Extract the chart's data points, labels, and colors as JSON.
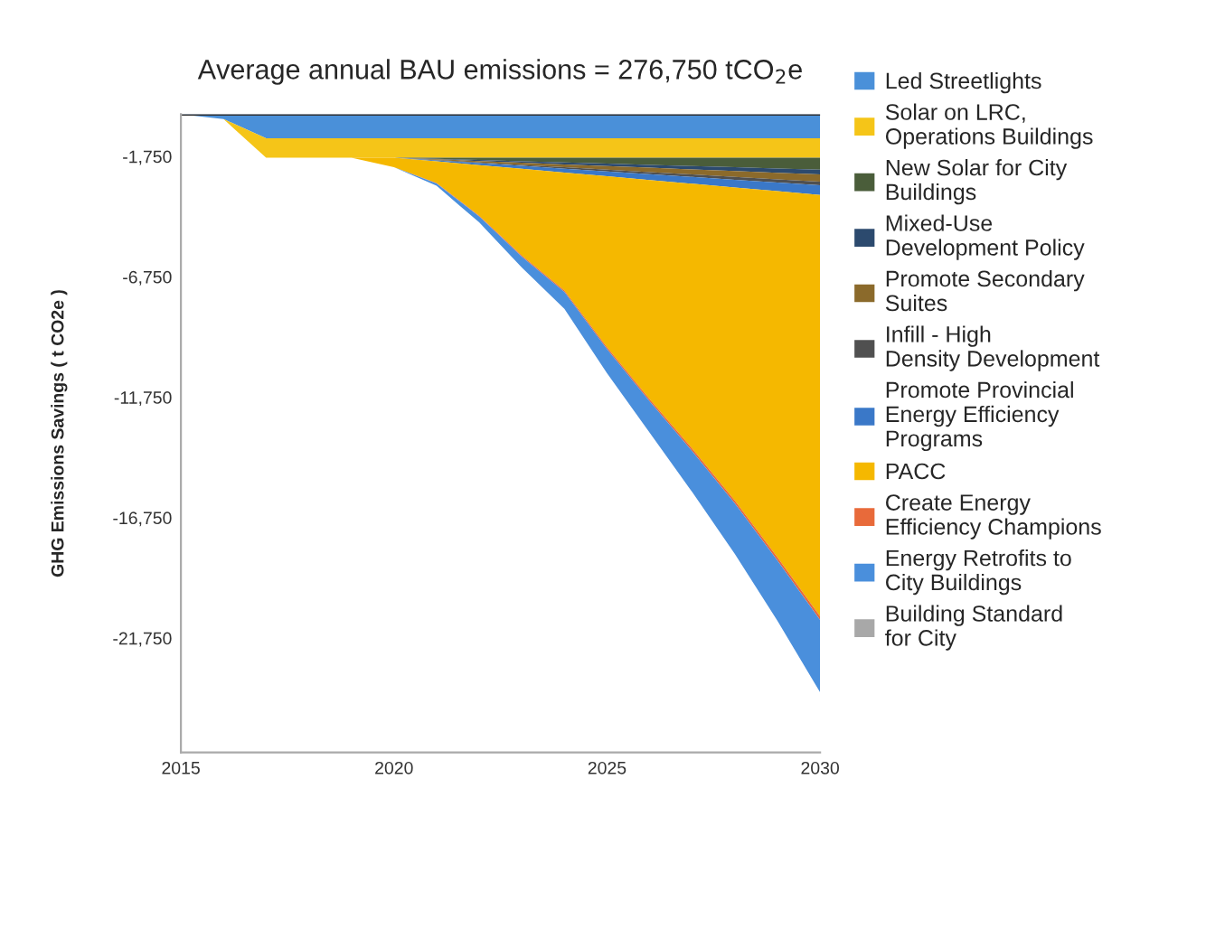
{
  "chart_data": {
    "type": "area",
    "stacked": true,
    "title": "Average annual BAU emissions = 276,750 tCO$_{2}$e",
    "ylabel": "GHG Emissions Savings ( t CO2e )",
    "x": [
      2015,
      2016,
      2017,
      2018,
      2019,
      2020,
      2021,
      2022,
      2023,
      2024,
      2025,
      2026,
      2027,
      2028,
      2029,
      2030
    ],
    "xlim": [
      2015,
      2030
    ],
    "xticks": [
      2015,
      2020,
      2025,
      2030
    ],
    "ylim": [
      -26500,
      0
    ],
    "yticks": [
      {
        "value": -1750,
        "label": "-1,750"
      },
      {
        "value": -6750,
        "label": "-6,750"
      },
      {
        "value": -11750,
        "label": "-11,750"
      },
      {
        "value": -16750,
        "label": "-16,750"
      },
      {
        "value": -21750,
        "label": "-21,750"
      }
    ],
    "grid": false,
    "legend": "right",
    "series": [
      {
        "name": "Led Streetlights",
        "color": "#4a90d9",
        "values": [
          0,
          -200,
          -1000,
          -1000,
          -1000,
          -1000,
          -1000,
          -1000,
          -1000,
          -1000,
          -1000,
          -1000,
          -1000,
          -1000,
          -1000,
          -1000
        ]
      },
      {
        "name": "Solar on LRC, Operations Buildings",
        "color": "#f5c518",
        "values": [
          0,
          0,
          -800,
          -800,
          -800,
          -800,
          -800,
          -800,
          -800,
          -800,
          -800,
          -800,
          -800,
          -800,
          -800,
          -800
        ]
      },
      {
        "name": "New Solar for City Buildings",
        "color": "#4a5d3a",
        "values": [
          0,
          0,
          0,
          0,
          0,
          0,
          -50,
          -100,
          -150,
          -200,
          -250,
          -300,
          -350,
          -400,
          -450,
          -500
        ]
      },
      {
        "name": "Mixed-Use Development Policy",
        "color": "#2c4a6e",
        "values": [
          0,
          0,
          0,
          0,
          0,
          0,
          -20,
          -40,
          -60,
          -80,
          -100,
          -120,
          -140,
          -160,
          -180,
          -200
        ]
      },
      {
        "name": "Promote Secondary Suites",
        "color": "#8b6a2b",
        "values": [
          0,
          0,
          0,
          0,
          0,
          0,
          -30,
          -60,
          -90,
          -120,
          -150,
          -180,
          -210,
          -240,
          -270,
          -300
        ]
      },
      {
        "name": "Infill - High Density Development",
        "color": "#505050",
        "values": [
          0,
          0,
          0,
          0,
          0,
          0,
          -15,
          -30,
          -45,
          -60,
          -75,
          -90,
          -105,
          -120,
          -135,
          -150
        ]
      },
      {
        "name": "Promote Provincial Energy Efficiency Programs",
        "color": "#3a78c8",
        "values": [
          0,
          0,
          0,
          0,
          0,
          0,
          -40,
          -80,
          -120,
          -160,
          -200,
          -240,
          -280,
          -320,
          -360,
          -400
        ]
      },
      {
        "name": "PACC",
        "color": "#f5b800",
        "values": [
          0,
          0,
          0,
          0,
          0,
          -400,
          -900,
          -2100,
          -3600,
          -4900,
          -7100,
          -9100,
          -11000,
          -13000,
          -15200,
          -17500
        ]
      },
      {
        "name": "Create Energy Efficiency Champions",
        "color": "#e86a3a",
        "values": [
          0,
          0,
          0,
          0,
          0,
          0,
          -15,
          -30,
          -45,
          -60,
          -75,
          -90,
          -105,
          -120,
          -135,
          -150
        ]
      },
      {
        "name": "Energy Retrofits to City Buildings",
        "color": "#4a8fdc",
        "values": [
          0,
          0,
          0,
          0,
          0,
          0,
          -100,
          -250,
          -450,
          -700,
          -1000,
          -1300,
          -1700,
          -2100,
          -2500,
          -3000
        ]
      },
      {
        "name": "Building Standard for City",
        "color": "#a8a8a8",
        "values": [
          null,
          null,
          null,
          null,
          null,
          null,
          null,
          null,
          null,
          null,
          null,
          null,
          null,
          null,
          null,
          null
        ]
      }
    ]
  }
}
